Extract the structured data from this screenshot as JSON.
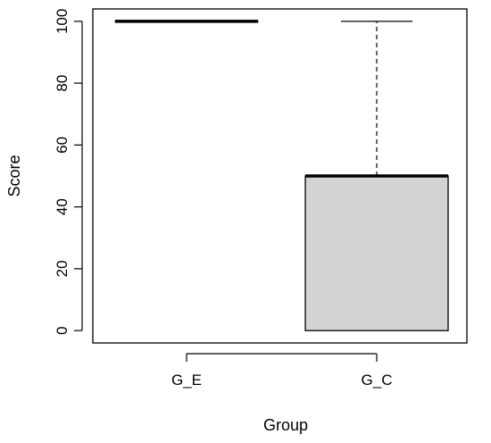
{
  "chart_data": {
    "type": "boxplot",
    "title": "",
    "xlabel": "Group",
    "ylabel": "Score",
    "ylim": [
      -4,
      104
    ],
    "yticks": [
      0,
      20,
      40,
      60,
      80,
      100
    ],
    "categories": [
      "G_E",
      "G_C"
    ],
    "boxes": [
      {
        "name": "G_E",
        "min": 100,
        "q1": 100,
        "median": 100,
        "q3": 100,
        "max": 100
      },
      {
        "name": "G_C",
        "min": 0,
        "q1": 0,
        "median": 50,
        "q3": 50,
        "max": 100
      }
    ],
    "grid": false,
    "box_fill": "#d3d3d3",
    "line_color": "#000000"
  }
}
